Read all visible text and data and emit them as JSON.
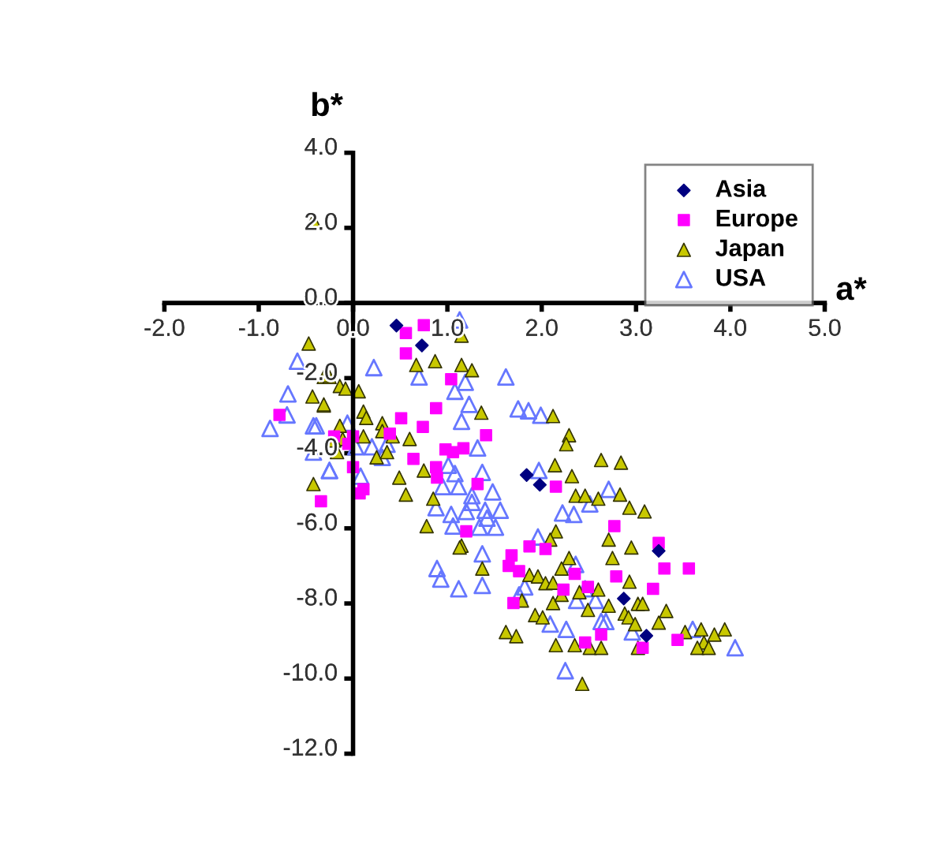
{
  "chart_data": {
    "type": "scatter",
    "xlabel": "a*",
    "ylabel": "b*",
    "xlim": [
      -2,
      5
    ],
    "ylim": [
      -12,
      4
    ],
    "xticks": [
      {
        "value": -2,
        "label": "-2.0"
      },
      {
        "value": -1,
        "label": "-1.0"
      },
      {
        "value": 0,
        "label": "0.0"
      },
      {
        "value": 1,
        "label": "1.0"
      },
      {
        "value": 2,
        "label": "2.0"
      },
      {
        "value": 3,
        "label": "3.0"
      },
      {
        "value": 4,
        "label": "4.0"
      },
      {
        "value": 5,
        "label": "5.0"
      }
    ],
    "yticks": [
      {
        "value": 4,
        "label": "4.0"
      },
      {
        "value": 2,
        "label": "2.0"
      },
      {
        "value": 0,
        "label": "0.0"
      },
      {
        "value": -2,
        "label": "-2.0"
      },
      {
        "value": -4,
        "label": "-4.0"
      },
      {
        "value": -6,
        "label": "-6.0"
      },
      {
        "value": -8,
        "label": "-8.0"
      },
      {
        "value": -10,
        "label": "-10.0"
      },
      {
        "value": -12,
        "label": "-12.0"
      }
    ],
    "grid": false,
    "legend": "top right",
    "series": [
      {
        "name": "Asia",
        "color": "#000080",
        "marker": "diamond",
        "x": [
          0.46,
          0.73,
          1.84,
          1.98,
          3.24,
          2.87,
          3.11
        ],
        "values": [
          -0.6,
          -1.13,
          -4.58,
          -4.84,
          -6.6,
          -7.87,
          -8.86
        ]
      },
      {
        "name": "Europe",
        "color": "#ff00ff",
        "marker": "square",
        "x": [
          0.75,
          0.56,
          0.56,
          1.04,
          0.88,
          0.74,
          0.51,
          0.39,
          1.41,
          0.98,
          1.06,
          1.17,
          0.64,
          0.88,
          0.89,
          1.32,
          1.2,
          2.15,
          2.77,
          2.04,
          1.87,
          1.68,
          1.65,
          1.76,
          1.7,
          2.35,
          2.23,
          2.49,
          3.24,
          3.3,
          3.56,
          3.18,
          2.79,
          2.63,
          2.46,
          3.07,
          3.44,
          0.11,
          0.07,
          0.0,
          -0.34,
          -0.78,
          -0.2,
          0.0,
          -0.05
        ],
        "values": [
          -0.59,
          -0.8,
          -1.34,
          -2.03,
          -2.8,
          -3.3,
          -3.07,
          -3.48,
          -3.52,
          -3.9,
          -3.97,
          -3.87,
          -4.15,
          -4.37,
          -4.65,
          -4.82,
          -6.08,
          -4.89,
          -5.94,
          -6.55,
          -6.48,
          -6.72,
          -7.0,
          -7.14,
          -7.99,
          -7.21,
          -7.63,
          -7.56,
          -6.39,
          -7.07,
          -7.07,
          -7.61,
          -7.28,
          -8.83,
          -9.04,
          -9.18,
          -8.97,
          -4.96,
          -5.07,
          -4.37,
          -5.28,
          -2.98,
          -3.55,
          -3.55,
          -3.75
        ]
      },
      {
        "name": "Japan",
        "color": "#c8c800",
        "marker": "triangle",
        "x": [
          0.67,
          0.87,
          1.15,
          1.26,
          1.36,
          1.15,
          0.6,
          0.75,
          0.49,
          0.56,
          0.85,
          0.78,
          1.15,
          1.37,
          2.12,
          2.29,
          2.26,
          2.14,
          2.32,
          2.63,
          2.84,
          2.36,
          2.46,
          2.6,
          2.83,
          2.93,
          3.09,
          2.15,
          2.09,
          2.71,
          2.95,
          2.75,
          2.29,
          2.21,
          2.93,
          1.87,
          1.96,
          2.04,
          2.12,
          1.79,
          2.12,
          1.93,
          2.01,
          2.21,
          2.4,
          2.6,
          2.71,
          2.49,
          2.88,
          3.02,
          3.07,
          2.92,
          2.99,
          3.24,
          3.32,
          1.62,
          1.73,
          2.15,
          2.35,
          2.51,
          2.63,
          3.02,
          3.52,
          3.69,
          3.83,
          3.94,
          3.72,
          3.65,
          3.77,
          -0.31,
          -0.25,
          -0.14,
          -0.08,
          0.06,
          -0.31,
          0.11,
          0.31,
          0.31,
          0.11,
          -0.11,
          -0.2,
          -0.17,
          0.25,
          0.36,
          -0.42,
          0.42,
          -0.14,
          0.14,
          -0.47,
          -0.28,
          -0.43,
          -0.31,
          -0.42,
          2.43,
          1.13
        ],
        "values": [
          -1.65,
          -1.55,
          -1.65,
          -1.79,
          -2.92,
          -0.87,
          -3.62,
          -4.46,
          -4.65,
          -5.1,
          -5.21,
          -5.94,
          -6.46,
          -7.07,
          -3.01,
          -3.52,
          -3.76,
          -4.32,
          -4.61,
          -4.18,
          -4.25,
          -5.13,
          -5.13,
          -5.21,
          -5.1,
          -5.45,
          -5.55,
          -6.08,
          -6.3,
          -6.3,
          -6.51,
          -6.79,
          -6.79,
          -7.07,
          -7.42,
          -7.24,
          -7.28,
          -7.46,
          -7.45,
          -7.92,
          -7.99,
          -8.31,
          -8.37,
          -7.77,
          -7.7,
          -7.63,
          -8.06,
          -8.17,
          -8.27,
          -8.01,
          -8.01,
          -8.37,
          -8.55,
          -8.51,
          -8.2,
          -8.76,
          -8.87,
          -9.11,
          -9.11,
          -9.18,
          -9.18,
          -9.18,
          -8.76,
          -8.69,
          -8.83,
          -8.69,
          -9.04,
          -9.18,
          -9.18,
          -1.97,
          -1.97,
          -2.21,
          -2.28,
          -2.35,
          -2.73,
          -2.89,
          -3.2,
          -3.41,
          -3.55,
          -3.62,
          -3.66,
          -3.97,
          -4.11,
          -3.97,
          -4.82,
          -3.55,
          -3.27,
          -3.06,
          -1.08,
          -1.93,
          -2.49,
          -2.7,
          2.2,
          -10.14,
          -6.51
        ]
      },
      {
        "name": "USA",
        "color": "#6677ff",
        "marker": "triangle-open",
        "x": [
          1.13,
          0.22,
          0.7,
          1.19,
          1.08,
          1.23,
          1.15,
          1.32,
          1.62,
          1.75,
          1.86,
          1.99,
          1.08,
          1.37,
          0.95,
          1.12,
          1.26,
          1.48,
          0.88,
          1.04,
          1.2,
          1.4,
          1.56,
          1.06,
          1.34,
          1.51,
          1.97,
          2.22,
          2.34,
          1.96,
          2.36,
          1.37,
          0.89,
          0.93,
          1.12,
          1.37,
          2.71,
          2.51,
          1.76,
          1.82,
          2.46,
          2.68,
          2.09,
          2.26,
          2.96,
          3.6,
          4.05,
          -0.06,
          0.36,
          0.08,
          -0.25,
          -0.42,
          -0.42,
          0.2,
          0.03,
          1.01,
          0.31,
          1.26,
          1.42,
          2.37,
          2.57,
          2.63,
          -0.59,
          -0.69,
          -0.7,
          -0.88,
          -0.39,
          -0.25,
          2.25
        ],
        "values": [
          -0.45,
          -1.72,
          -1.97,
          -2.11,
          -2.35,
          -2.7,
          -3.15,
          -3.86,
          -1.97,
          -2.82,
          -2.87,
          -2.99,
          -4.54,
          -4.51,
          -4.89,
          -4.89,
          -5.13,
          -5.03,
          -5.45,
          -5.63,
          -5.55,
          -5.52,
          -5.52,
          -5.94,
          -5.97,
          -5.97,
          -4.46,
          -5.59,
          -5.63,
          -6.23,
          -6.96,
          -6.68,
          -7.07,
          -7.35,
          -7.61,
          -7.52,
          -4.96,
          -5.35,
          -7.77,
          -7.56,
          -7.61,
          -8.48,
          -8.55,
          -8.69,
          -8.76,
          -8.69,
          -9.18,
          -3.2,
          -3.76,
          -4.61,
          -4.46,
          -3.97,
          -3.27,
          -3.83,
          -3.83,
          -4.32,
          -4.11,
          -5.31,
          -5.73,
          -7.92,
          -7.92,
          -8.48,
          -1.55,
          -2.42,
          -2.98,
          -3.34,
          -3.27,
          -4.46,
          -9.79
        ]
      }
    ]
  }
}
